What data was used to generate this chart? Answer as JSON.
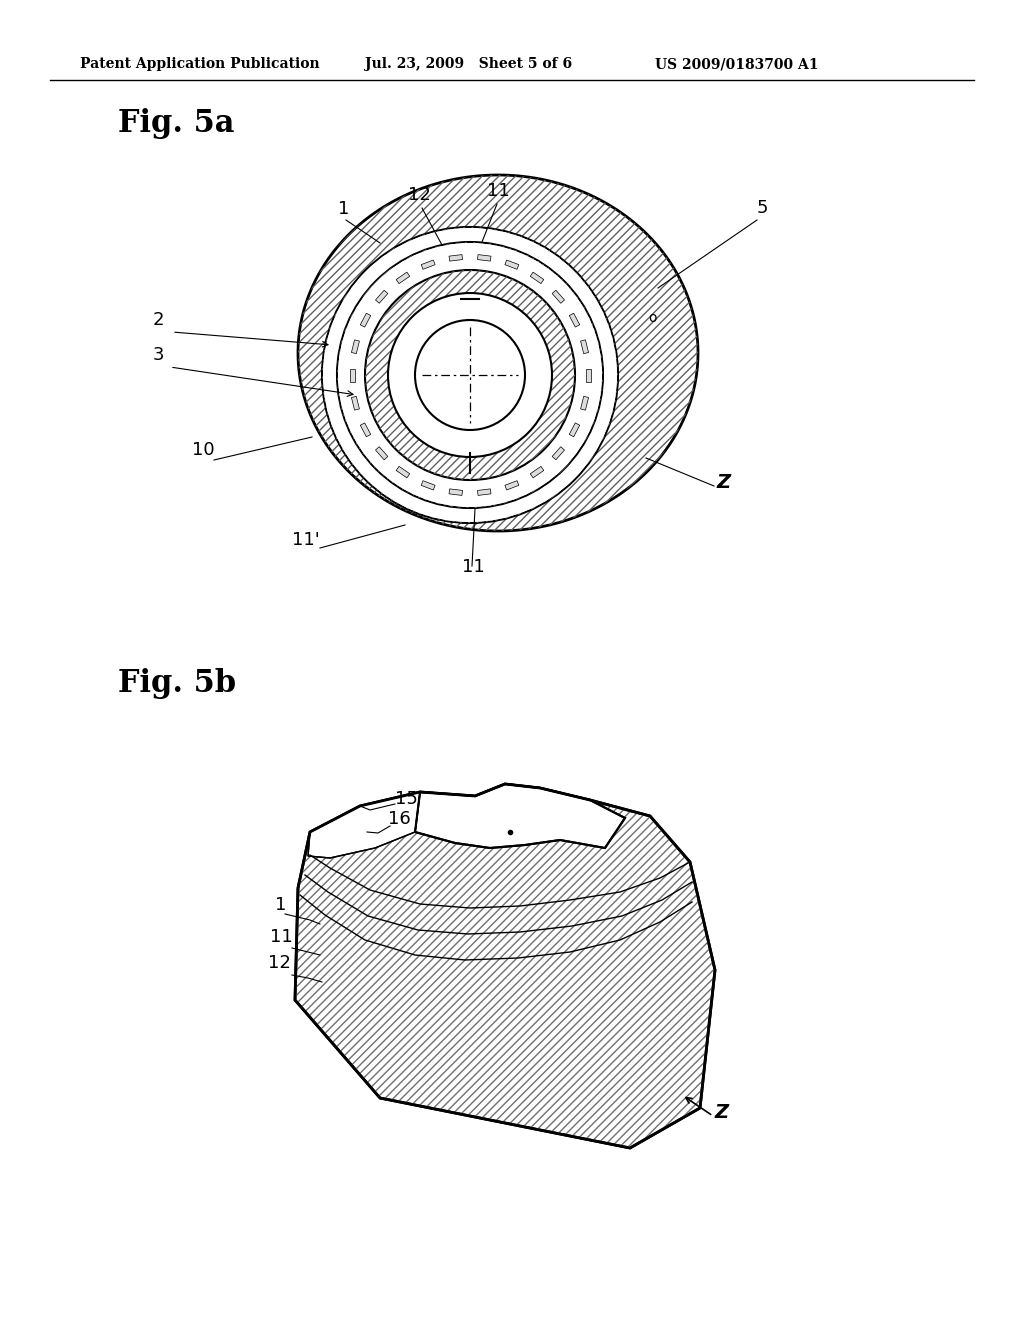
{
  "header_left": "Patent Application Publication",
  "header_mid": "Jul. 23, 2009   Sheet 5 of 6",
  "header_right": "US 2009/0183700 A1",
  "fig5a_title": "Fig. 5a",
  "fig5b_title": "Fig. 5b",
  "bg_color": "#ffffff",
  "line_color": "#000000"
}
